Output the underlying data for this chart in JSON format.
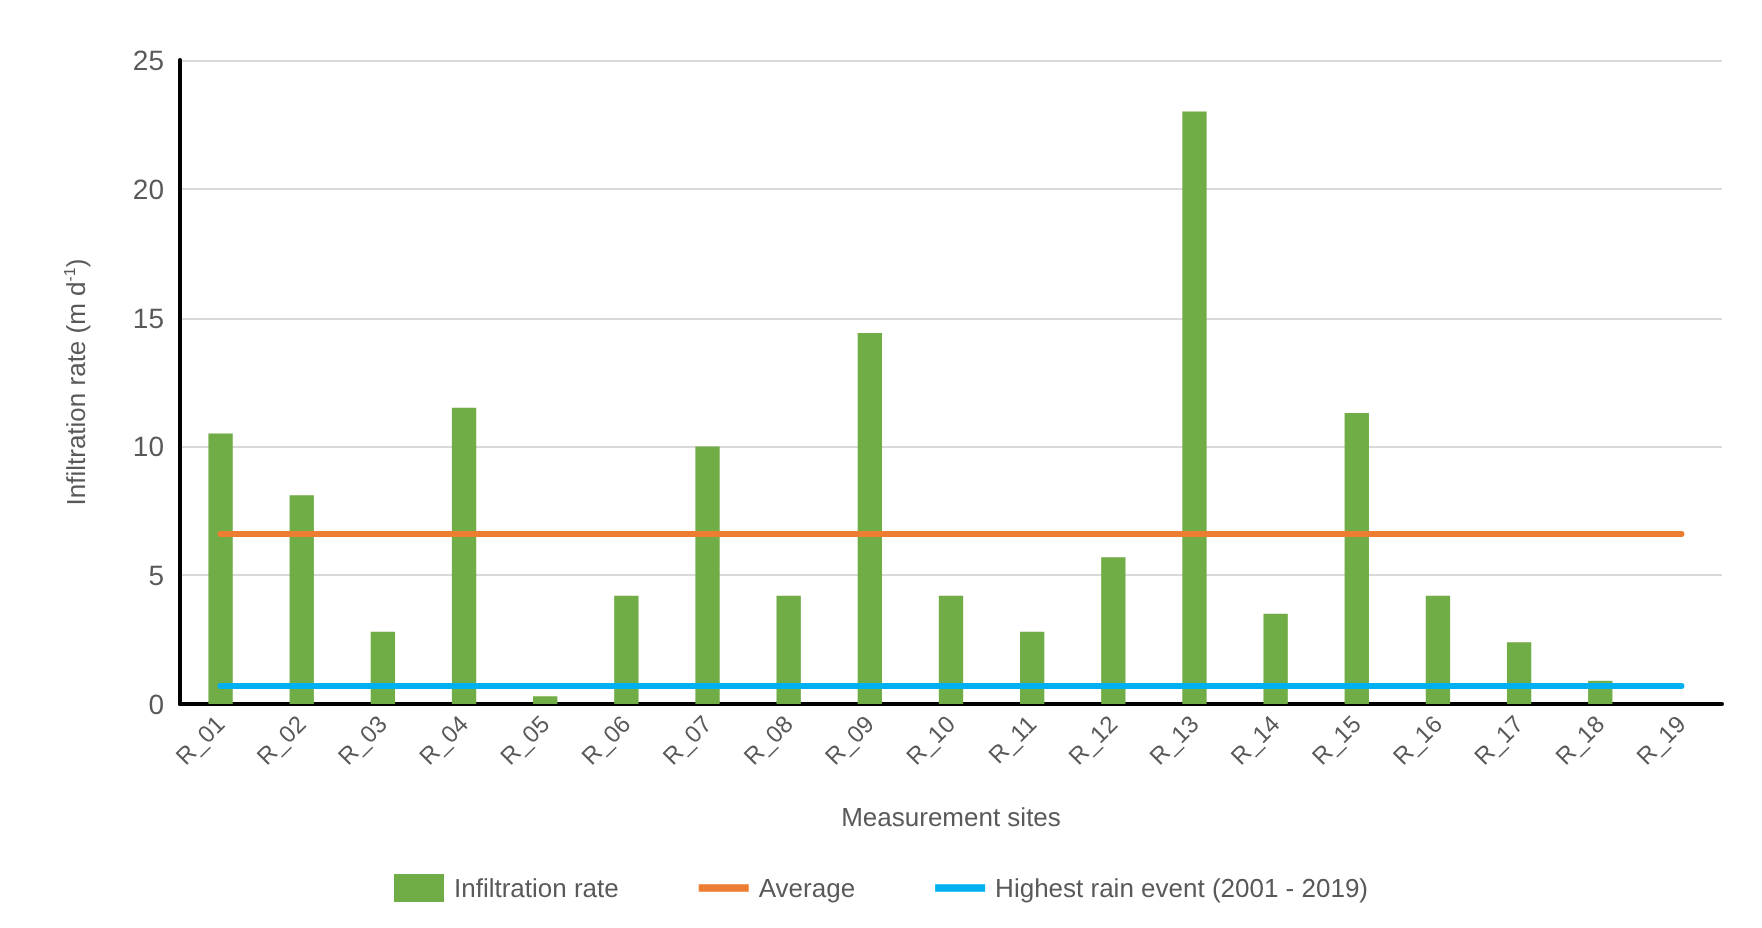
{
  "chart_data": {
    "type": "bar",
    "xlabel": "Measurement sites",
    "ylabel": "Infiltration rate (m d$^{-1}$)",
    "categories": [
      "R_01",
      "R_02",
      "R_03",
      "R_04",
      "R_05",
      "R_06",
      "R_07",
      "R_08",
      "R_09",
      "R_10",
      "R_11",
      "R_12",
      "R_13",
      "R_14",
      "R_15",
      "R_16",
      "R_17",
      "R_18",
      "R_19"
    ],
    "series": [
      {
        "name": "Infiltration rate",
        "color": "#70ad47",
        "values": [
          10.5,
          8.1,
          2.8,
          11.5,
          0.3,
          4.2,
          10.0,
          4.2,
          14.4,
          4.2,
          2.8,
          5.7,
          23.0,
          3.5,
          11.3,
          4.2,
          2.4,
          0.9,
          0
        ]
      },
      {
        "name": "Average",
        "type": "line",
        "color": "#ed7d31",
        "values": [
          6.6,
          6.6,
          6.6,
          6.6,
          6.6,
          6.6,
          6.6,
          6.6,
          6.6,
          6.6,
          6.6,
          6.6,
          6.6,
          6.6,
          6.6,
          6.6,
          6.6,
          6.6,
          6.6
        ]
      },
      {
        "name": "Highest rain event (2001 - 2019)",
        "type": "line",
        "color": "#00b0f0",
        "values": [
          0.7,
          0.7,
          0.7,
          0.7,
          0.7,
          0.7,
          0.7,
          0.7,
          0.7,
          0.7,
          0.7,
          0.7,
          0.7,
          0.7,
          0.7,
          0.7,
          0.7,
          0.7,
          0.7
        ]
      }
    ],
    "ylim": [
      0,
      25
    ],
    "yticks": [
      0,
      5,
      10,
      15,
      20,
      25
    ],
    "grid": "y",
    "legend": "bottom",
    "marker": "none",
    "line_style": "solid"
  }
}
